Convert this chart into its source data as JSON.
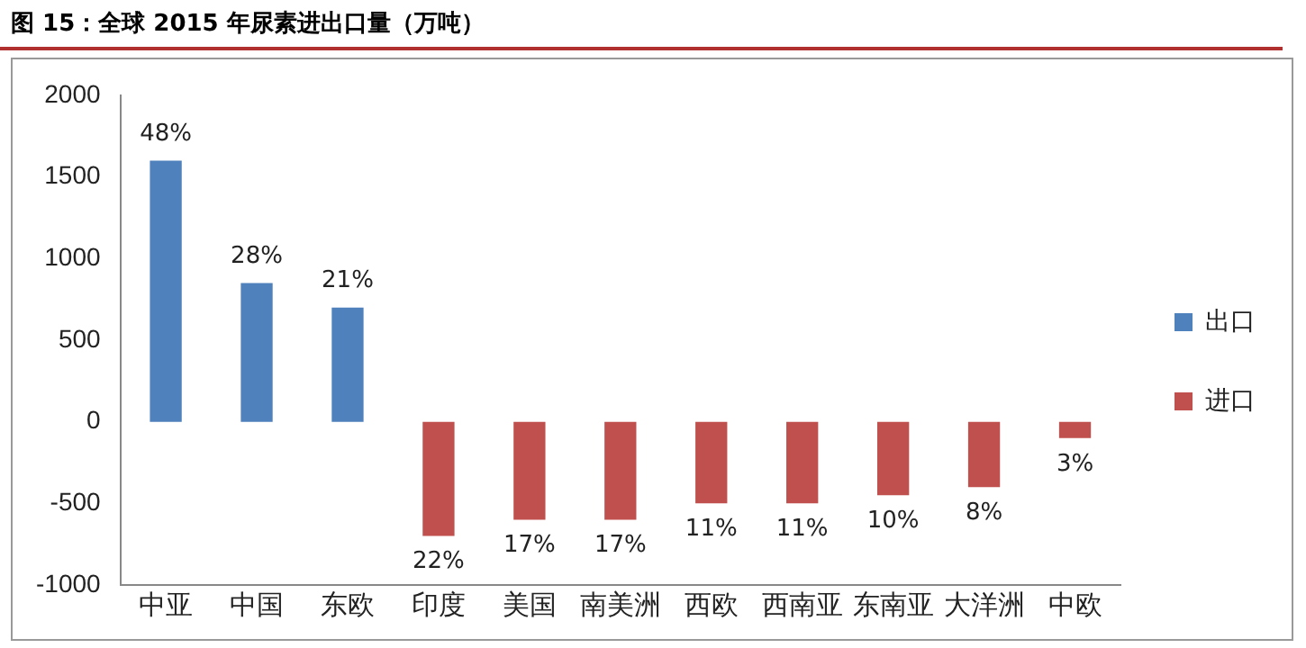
{
  "chart_data": {
    "type": "bar",
    "title": "图 15：全球 2015 年尿素进出口量（万吨）",
    "categories": [
      "中亚",
      "中国",
      "东欧",
      "印度",
      "美国",
      "南美洲",
      "西欧",
      "西南亚",
      "东南亚",
      "大洋洲",
      "中欧"
    ],
    "series": [
      {
        "name": "出口",
        "color": "#4f81bd",
        "values": [
          1600,
          850,
          700,
          null,
          null,
          null,
          null,
          null,
          null,
          null,
          null
        ]
      },
      {
        "name": "进口",
        "color": "#c0504d",
        "values": [
          null,
          null,
          null,
          -700,
          -600,
          -600,
          -500,
          -500,
          -450,
          -400,
          -100
        ]
      }
    ],
    "annotations": [
      {
        "text": "48%",
        "x": "中亚",
        "y": 1600
      },
      {
        "text": "28%",
        "x": "中国",
        "y": 850
      },
      {
        "text": "21%",
        "x": "东欧",
        "y": 700
      },
      {
        "text": "22%",
        "x": "印度",
        "y": -700
      },
      {
        "text": "17%",
        "x": "美国",
        "y": -600
      },
      {
        "text": "17%",
        "x": "南美洲",
        "y": -600
      },
      {
        "text": "11%",
        "x": "西欧",
        "y": -500
      },
      {
        "text": "11%",
        "x": "西南亚",
        "y": -500
      },
      {
        "text": "10%",
        "x": "东南亚",
        "y": -450
      },
      {
        "text": "8%",
        "x": "大洋洲",
        "y": -400
      },
      {
        "text": "3%",
        "x": "中欧",
        "y": -100
      }
    ],
    "ylim": [
      -1000,
      2000
    ],
    "yticks": [
      -1000,
      -500,
      0,
      500,
      1000,
      1500,
      2000
    ],
    "grid": false,
    "legend": "right"
  }
}
